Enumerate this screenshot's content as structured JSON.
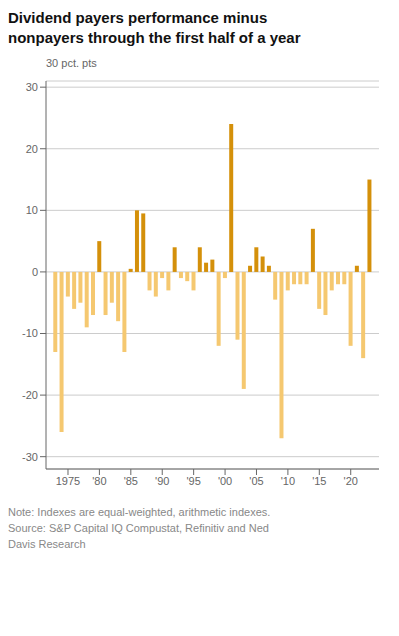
{
  "chart_data": {
    "type": "bar",
    "title": "Dividend payers performance minus\nnonpayers through the first half of a year",
    "ylabel": "30 pct. pts",
    "note": "Note: Indexes are equal-weighted, arithmetic indexes.\nSource: S&P Capital IQ Compustat, Refinitiv and Ned\nDavis Research",
    "x": [
      1973,
      1974,
      1975,
      1976,
      1977,
      1978,
      1979,
      1980,
      1981,
      1982,
      1983,
      1984,
      1985,
      1986,
      1987,
      1988,
      1989,
      1990,
      1991,
      1992,
      1993,
      1994,
      1995,
      1996,
      1997,
      1998,
      1999,
      2000,
      2001,
      2002,
      2003,
      2004,
      2005,
      2006,
      2007,
      2008,
      2009,
      2010,
      2011,
      2012,
      2013,
      2014,
      2015,
      2016,
      2017,
      2018,
      2019,
      2020,
      2021,
      2022,
      2023
    ],
    "values": [
      -13,
      -26,
      -4,
      -6,
      -5,
      -9,
      -7,
      5,
      -7,
      -5,
      -8,
      -13,
      0.5,
      10,
      9.5,
      -3,
      -4,
      -1,
      -3,
      4,
      -1,
      -1.5,
      -3,
      4,
      1.5,
      2,
      -12,
      -1,
      24,
      -11,
      -19,
      1,
      4,
      2.5,
      1,
      -4.5,
      -27,
      -3,
      -2,
      -2,
      -2,
      7,
      -6,
      -7,
      -3,
      -2,
      -2,
      -12,
      1,
      -14,
      15
    ],
    "colors": [
      "#F5C870",
      "#F5C870",
      "#F5C870",
      "#F5C870",
      "#F5C870",
      "#F5C870",
      "#F5C870",
      "#D4900A",
      "#F5C870",
      "#F5C870",
      "#F5C870",
      "#F5C870",
      "#D4900A",
      "#D4900A",
      "#D4900A",
      "#F5C870",
      "#F5C870",
      "#F5C870",
      "#F5C870",
      "#D4900A",
      "#F5C870",
      "#F5C870",
      "#F5C870",
      "#D4900A",
      "#D4900A",
      "#D4900A",
      "#F5C870",
      "#F5C870",
      "#D4900A",
      "#F5C870",
      "#F5C870",
      "#D4900A",
      "#D4900A",
      "#D4900A",
      "#D4900A",
      "#F5C870",
      "#F5C870",
      "#F5C870",
      "#F5C870",
      "#F5C870",
      "#F5C870",
      "#D4900A",
      "#F5C870",
      "#F5C870",
      "#F5C870",
      "#F5C870",
      "#F5C870",
      "#F5C870",
      "#D4900A",
      "#F5C870",
      "#D4900A"
    ],
    "xlim": [
      1971.5,
      2024.5
    ],
    "xticks": [
      1975,
      {
        "value": 1980,
        "label": "'80"
      },
      {
        "value": 1985,
        "label": "'85"
      },
      {
        "value": 1990,
        "label": "'90"
      },
      {
        "value": 1995,
        "label": "'95"
      },
      {
        "value": 2000,
        "label": "'00"
      },
      {
        "value": 2005,
        "label": "'05"
      },
      {
        "value": 2010,
        "label": "'10"
      },
      {
        "value": 2015,
        "label": "'15"
      },
      {
        "value": 2020,
        "label": "'20"
      }
    ],
    "ylim": [
      -32,
      31
    ],
    "yticks": [
      -30,
      -20,
      -10,
      0,
      10,
      20,
      30
    ],
    "grid": true
  }
}
